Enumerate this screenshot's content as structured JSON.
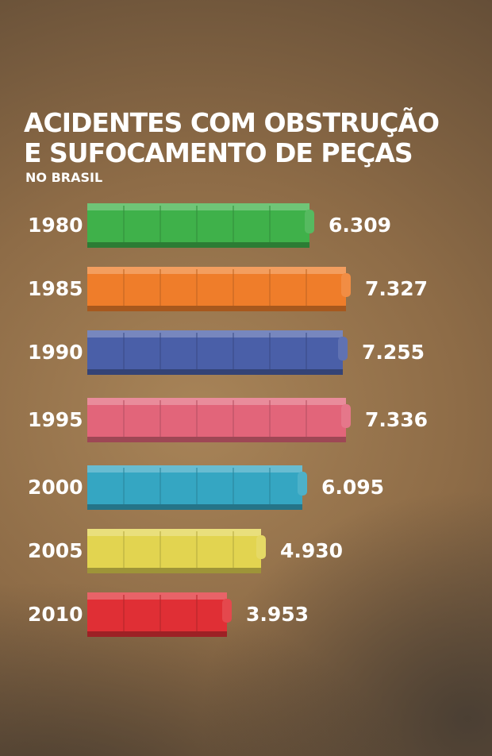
{
  "title_line1": "ACIDENTES COM OBSTRUÇÃO",
  "title_line2": "E SUFOCAMENTO DE PEÇAS",
  "subtitle": "NO BRASIL",
  "chart_data": {
    "type": "bar",
    "orientation": "horizontal",
    "title": "ACIDENTES COM OBSTRUÇÃO E SUFOCAMENTO DE PEÇAS",
    "subtitle": "NO BRASIL",
    "categories": [
      "1980",
      "1985",
      "1990",
      "1995",
      "2000",
      "2005",
      "2010"
    ],
    "values": [
      6309,
      7327,
      7255,
      7336,
      6095,
      4930,
      3953
    ],
    "value_labels": [
      "6.309",
      "7.327",
      "7.255",
      "7.336",
      "6.095",
      "4.930",
      "3.953"
    ],
    "colors": [
      "#3fb14a",
      "#ef7d2a",
      "#4a5fa8",
      "#e2657a",
      "#35a6c2",
      "#e2d450",
      "#e02f35"
    ],
    "grid": false,
    "legend": "none"
  }
}
